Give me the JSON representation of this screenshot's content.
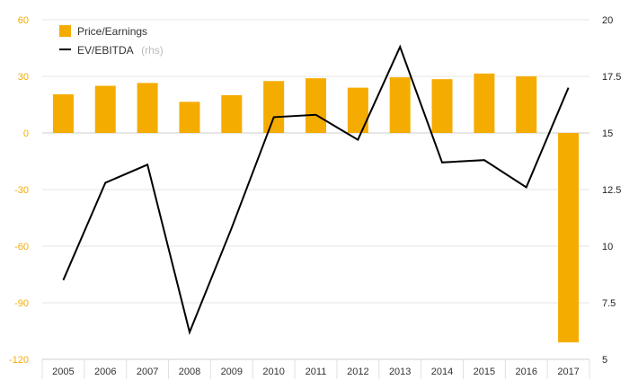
{
  "chart_data": {
    "type": "bar",
    "categories": [
      "2005",
      "2006",
      "2007",
      "2008",
      "2009",
      "2010",
      "2011",
      "2012",
      "2013",
      "2014",
      "2015",
      "2016",
      "2017"
    ],
    "series": [
      {
        "name": "Price/Earnings",
        "type": "bar",
        "axis": "left",
        "color": "#f5ac00",
        "values": [
          20.5,
          25,
          26.5,
          16.5,
          20,
          27.5,
          29,
          24,
          29.5,
          28.5,
          31.5,
          30,
          -111
        ]
      },
      {
        "name": "EV/EBITDA",
        "name_suffix": "(rhs)",
        "type": "line",
        "axis": "right",
        "color": "#000000",
        "values": [
          8.5,
          12.8,
          13.6,
          6.2,
          10.8,
          15.7,
          15.8,
          14.7,
          18.8,
          13.7,
          13.8,
          12.6,
          17.0
        ]
      }
    ],
    "y_left": {
      "ylim": [
        -120,
        60
      ],
      "ticks": [
        60,
        30,
        0,
        -30,
        -60,
        -90,
        -120
      ],
      "tick_labels": [
        "60",
        "30",
        "0",
        "-30",
        "-60",
        "-90",
        "-120"
      ],
      "color": "#f5ac00"
    },
    "y_right": {
      "ylim": [
        5,
        20
      ],
      "ticks": [
        20,
        17.5,
        15,
        12.5,
        10,
        7.5,
        5
      ],
      "tick_labels": [
        "20",
        "17.5",
        "15",
        "12.5",
        "10",
        "7.5",
        "5"
      ],
      "color": "#222222"
    },
    "grid": true,
    "legend": "top-left",
    "title": "",
    "xlabel": "",
    "ylabel": ""
  }
}
